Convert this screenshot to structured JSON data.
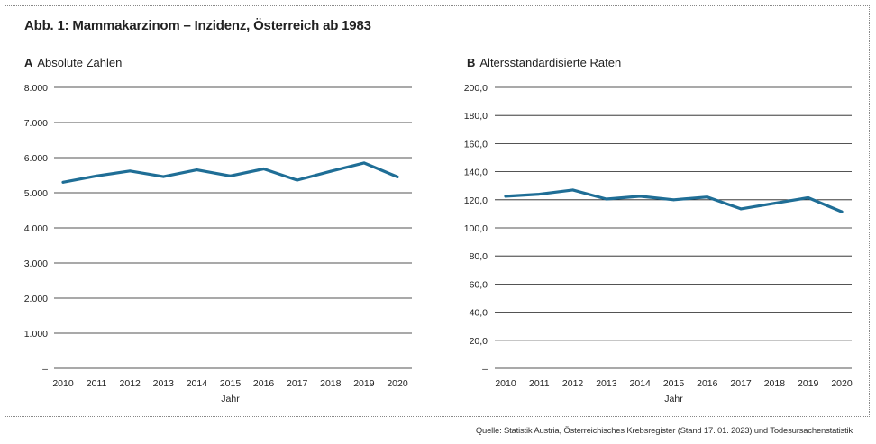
{
  "figure": {
    "title": "Abb. 1: Mammakarzinom – Inzidenz, Österreich ab 1983",
    "source": "Quelle: Statistik Austria, Österreichisches Krebsregister (Stand 17. 01. 2023) und Todesursachenstatistik"
  },
  "panels": [
    {
      "letter": "A",
      "title": "Absolute Zahlen"
    },
    {
      "letter": "B",
      "title": "Altersstandardisierte Raten"
    }
  ],
  "chart_data": [
    {
      "type": "line",
      "title": "Absolute Zahlen",
      "xlabel": "Jahr",
      "ylabel": "",
      "x": [
        "2010",
        "2011",
        "2012",
        "2013",
        "2014",
        "2015",
        "2016",
        "2017",
        "2018",
        "2019",
        "2020"
      ],
      "series": [
        {
          "values": [
            5300,
            5480,
            5620,
            5460,
            5650,
            5480,
            5680,
            5360,
            5610,
            5850,
            5450
          ]
        }
      ],
      "ylim": [
        0,
        8000
      ],
      "yticks": [
        0,
        1000,
        2000,
        3000,
        4000,
        5000,
        6000,
        7000,
        8000
      ],
      "ytick_labels": [
        "–",
        "1.000",
        "2.000",
        "3.000",
        "4.000",
        "5.000",
        "6.000",
        "7.000",
        "8.000"
      ],
      "grid": true,
      "color": "#1f6e96"
    },
    {
      "type": "line",
      "title": "Altersstandardisierte Raten",
      "xlabel": "Jahr",
      "ylabel": "",
      "x": [
        "2010",
        "2011",
        "2012",
        "2013",
        "2014",
        "2015",
        "2016",
        "2017",
        "2018",
        "2019",
        "2020"
      ],
      "series": [
        {
          "values": [
            122.5,
            124.0,
            127.0,
            120.5,
            122.5,
            120.0,
            122.0,
            113.5,
            117.5,
            121.5,
            111.5
          ]
        }
      ],
      "ylim": [
        0,
        200
      ],
      "yticks": [
        0,
        20,
        40,
        60,
        80,
        100,
        120,
        140,
        160,
        180,
        200
      ],
      "ytick_labels": [
        "–",
        "20,0",
        "40,0",
        "60,0",
        "80,0",
        "100,0",
        "120,0",
        "140,0",
        "160,0",
        "180,0",
        "200,0"
      ],
      "grid": true,
      "color": "#1f6e96"
    }
  ]
}
